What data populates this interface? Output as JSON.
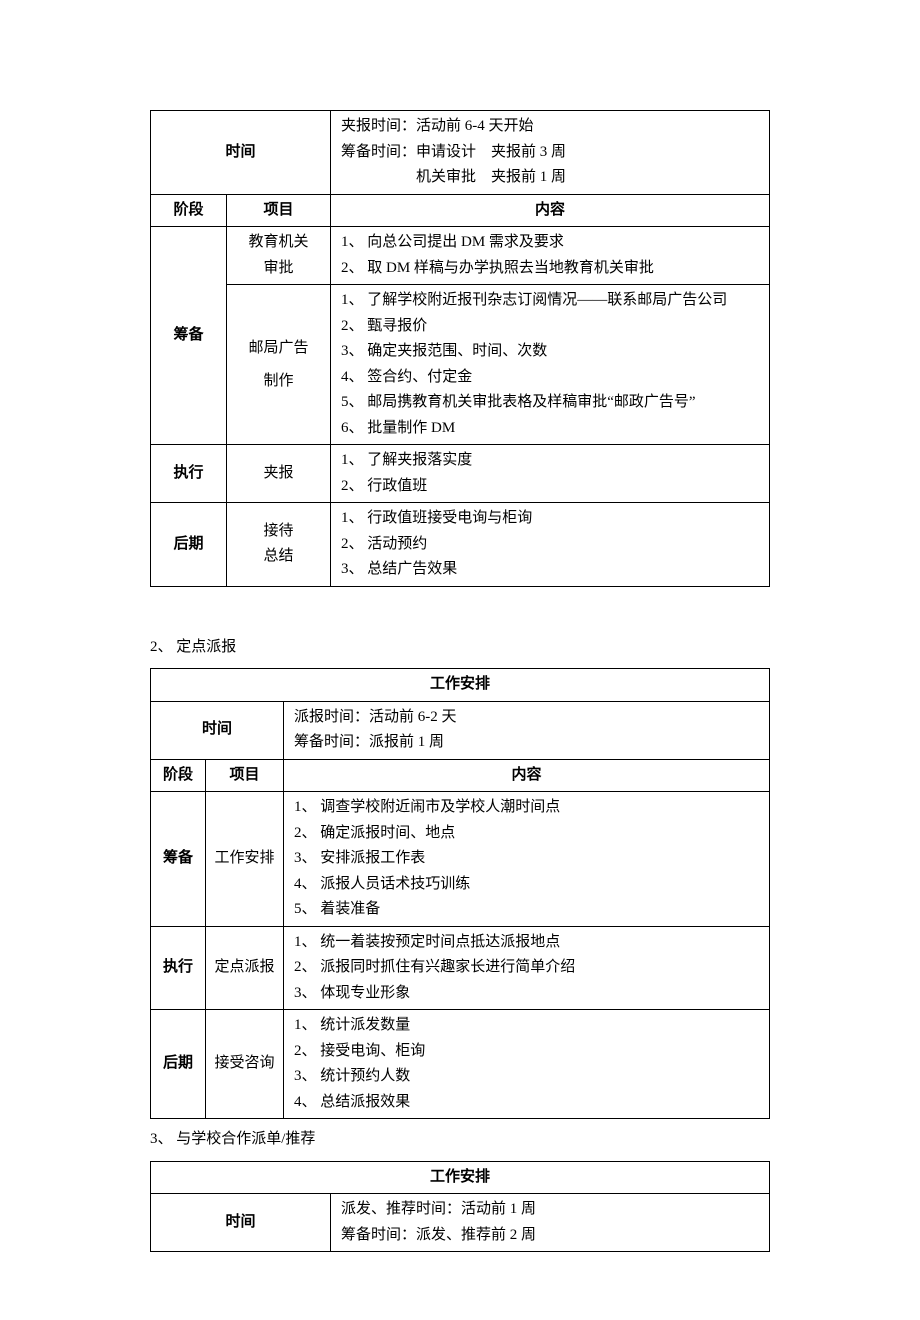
{
  "table1": {
    "time": {
      "label": "时间",
      "lines": [
        "夹报时间：活动前 6-4 天开始",
        "筹备时间：申请设计　夹报前 3 周",
        "　　　　　机关审批　夹报前 1 周"
      ]
    },
    "headers": {
      "phase": "阶段",
      "item": "项目",
      "content": "内容"
    },
    "rows": [
      {
        "phase": "筹备",
        "items": [
          {
            "name": "教育机关\n审批",
            "content": [
              "1、 向总公司提出 DM 需求及要求",
              "2、 取 DM 样稿与办学执照去当地教育机关审批"
            ]
          },
          {
            "name": "邮局广告\n制作",
            "content": [
              "1、 了解学校附近报刊杂志订阅情况——联系邮局广告公司",
              "2、 甄寻报价",
              "3、 确定夹报范围、时间、次数",
              "4、 签合约、付定金",
              "5、 邮局携教育机关审批表格及样稿审批“邮政广告号”",
              "6、 批量制作 DM"
            ]
          }
        ]
      },
      {
        "phase": "执行",
        "items": [
          {
            "name": "夹报",
            "content": [
              "1、 了解夹报落实度",
              "2、 行政值班"
            ]
          }
        ]
      },
      {
        "phase": "后期",
        "items": [
          {
            "name": "接待\n总结",
            "content": [
              "1、 行政值班接受电询与柜询",
              "2、 活动预约",
              "3、 总结广告效果"
            ]
          }
        ]
      }
    ]
  },
  "section2": {
    "heading": "2、 定点派报"
  },
  "table2": {
    "title": "工作安排",
    "time": {
      "label": "时间",
      "lines": [
        "派报时间：活动前 6-2 天",
        "筹备时间：派报前 1 周"
      ]
    },
    "headers": {
      "phase": "阶段",
      "item": "项目",
      "content": "内容"
    },
    "rows": [
      {
        "phase": "筹备",
        "item": "工作安排",
        "content": [
          "1、 调查学校附近闹市及学校人潮时间点",
          "2、 确定派报时间、地点",
          "3、 安排派报工作表",
          "4、 派报人员话术技巧训练",
          "5、 着装准备"
        ]
      },
      {
        "phase": "执行",
        "item": "定点派报",
        "content": [
          "1、 统一着装按预定时间点抵达派报地点",
          "2、 派报同时抓住有兴趣家长进行简单介绍",
          "3、 体现专业形象"
        ]
      },
      {
        "phase": "后期",
        "item": "接受咨询",
        "content": [
          "1、 统计派发数量",
          "2、 接受电询、柜询",
          "3、 统计预约人数",
          "4、 总结派报效果"
        ]
      }
    ]
  },
  "section3": {
    "heading": "3、 与学校合作派单/推荐"
  },
  "table3": {
    "title": "工作安排",
    "time": {
      "label": "时间",
      "lines": [
        "派发、推荐时间：活动前 1 周",
        "筹备时间：派发、推荐前 2 周"
      ]
    }
  }
}
